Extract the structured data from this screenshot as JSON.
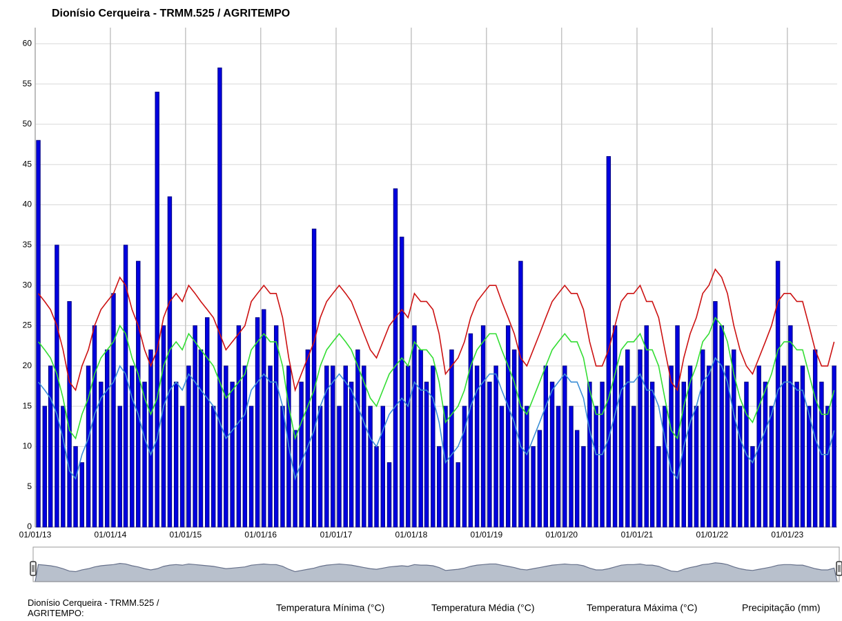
{
  "chart_data": {
    "type": "line",
    "title": "Dionísio Cerqueira - TRMM.525 / AGRITEMPO",
    "legend_title": "Dionísio Cerqueira - TRMM.525 / AGRITEMPO:",
    "x": [
      "2013-01-01",
      "2013-02-01",
      "2013-03-01",
      "2013-04-01",
      "2013-05-01",
      "2013-06-01",
      "2013-07-01",
      "2013-08-01",
      "2013-09-01",
      "2013-10-01",
      "2013-11-01",
      "2013-12-01",
      "2014-01-01",
      "2014-02-01",
      "2014-03-01",
      "2014-04-01",
      "2014-05-01",
      "2014-06-01",
      "2014-07-01",
      "2014-08-01",
      "2014-09-01",
      "2014-10-01",
      "2014-11-01",
      "2014-12-01",
      "2015-01-01",
      "2015-02-01",
      "2015-03-01",
      "2015-04-01",
      "2015-05-01",
      "2015-06-01",
      "2015-07-01",
      "2015-08-01",
      "2015-09-01",
      "2015-10-01",
      "2015-11-01",
      "2015-12-01",
      "2016-01-01",
      "2016-02-01",
      "2016-03-01",
      "2016-04-01",
      "2016-05-01",
      "2016-06-01",
      "2016-07-01",
      "2016-08-01",
      "2016-09-01",
      "2016-10-01",
      "2016-11-01",
      "2016-12-01",
      "2017-01-01",
      "2017-02-01",
      "2017-03-01",
      "2017-04-01",
      "2017-05-01",
      "2017-06-01",
      "2017-07-01",
      "2017-08-01",
      "2017-09-01",
      "2017-10-01",
      "2017-11-01",
      "2017-12-01",
      "2018-01-01",
      "2018-02-01",
      "2018-03-01",
      "2018-04-01",
      "2018-05-01",
      "2018-06-01",
      "2018-07-01",
      "2018-08-01",
      "2018-09-01",
      "2018-10-01",
      "2018-11-01",
      "2018-12-01",
      "2019-01-01",
      "2019-02-01",
      "2019-03-01",
      "2019-04-01",
      "2019-05-01",
      "2019-06-01",
      "2019-07-01",
      "2019-08-01",
      "2019-09-01",
      "2019-10-01",
      "2019-11-01",
      "2019-12-01",
      "2020-01-01",
      "2020-02-01",
      "2020-03-01",
      "2020-04-01",
      "2020-05-01",
      "2020-06-01",
      "2020-07-01",
      "2020-08-01",
      "2020-09-01",
      "2020-10-01",
      "2020-11-01",
      "2020-12-01",
      "2021-01-01",
      "2021-02-01",
      "2021-03-01",
      "2021-04-01",
      "2021-05-01",
      "2021-06-01",
      "2021-07-01",
      "2021-08-01",
      "2021-09-01",
      "2021-10-01",
      "2021-11-01",
      "2021-12-01",
      "2022-01-01",
      "2022-02-01",
      "2022-03-01",
      "2022-04-01",
      "2022-05-01",
      "2022-06-01",
      "2022-07-01",
      "2022-08-01",
      "2022-09-01",
      "2022-10-01",
      "2022-11-01",
      "2022-12-01",
      "2023-01-01",
      "2023-02-01",
      "2023-03-01",
      "2023-04-01",
      "2023-05-01",
      "2023-06-01",
      "2023-07-01",
      "2023-08-01"
    ],
    "series": [
      {
        "name": "Precipitação (mm)",
        "color": "#0000e0",
        "kind": "bar",
        "values": [
          48,
          15,
          20,
          35,
          15,
          28,
          10,
          8,
          20,
          25,
          18,
          22,
          29,
          15,
          35,
          20,
          33,
          18,
          22,
          54,
          25,
          41,
          18,
          15,
          20,
          25,
          22,
          26,
          15,
          57,
          20,
          18,
          25,
          20,
          15,
          26,
          27,
          20,
          25,
          15,
          20,
          12,
          18,
          22,
          37,
          15,
          20,
          20,
          15,
          20,
          18,
          22,
          20,
          15,
          10,
          15,
          8,
          42,
          36,
          20,
          25,
          22,
          18,
          20,
          10,
          15,
          22,
          8,
          15,
          24,
          20,
          25,
          18,
          20,
          15,
          25,
          22,
          33,
          15,
          10,
          12,
          20,
          18,
          15,
          20,
          15,
          12,
          10,
          18,
          15,
          18,
          46,
          25,
          20,
          22,
          15,
          22,
          25,
          18,
          10,
          15,
          20,
          25,
          18,
          20,
          15,
          22,
          20,
          28,
          25,
          20,
          22,
          15,
          18,
          10,
          20,
          18,
          15,
          33,
          20,
          25,
          18,
          20,
          15,
          22,
          18,
          15,
          20
        ]
      },
      {
        "name": "Temperatura Mínima (°C)",
        "color": "#3d8fd6",
        "kind": "line",
        "values": [
          18,
          17,
          16,
          14,
          11,
          7,
          6,
          9,
          11,
          14,
          16,
          17,
          18,
          20,
          19,
          16,
          14,
          11,
          9,
          11,
          15,
          17,
          18,
          17,
          19,
          18,
          17,
          16,
          15,
          13,
          11,
          12,
          13,
          14,
          17,
          18,
          19,
          18,
          18,
          15,
          10,
          6,
          8,
          10,
          12,
          15,
          17,
          18,
          19,
          18,
          17,
          15,
          13,
          11,
          10,
          12,
          14,
          15,
          16,
          15,
          18,
          17,
          17,
          16,
          13,
          8,
          9,
          10,
          12,
          15,
          17,
          18,
          19,
          19,
          17,
          15,
          13,
          10,
          9,
          11,
          13,
          15,
          17,
          18,
          19,
          18,
          18,
          16,
          12,
          9,
          9,
          11,
          14,
          17,
          18,
          18,
          19,
          17,
          17,
          15,
          11,
          7,
          6,
          10,
          13,
          15,
          18,
          19,
          21,
          20,
          18,
          14,
          11,
          9,
          8,
          10,
          12,
          14,
          17,
          18,
          18,
          17,
          17,
          14,
          11,
          9,
          9,
          12
        ]
      },
      {
        "name": "Temperatura Média (°C)",
        "color": "#33dd33",
        "kind": "line",
        "values": [
          23,
          22,
          21,
          19,
          16,
          12,
          11,
          14,
          16,
          19,
          21,
          22,
          23,
          25,
          24,
          21,
          19,
          16,
          14,
          16,
          20,
          22,
          23,
          22,
          24,
          23,
          22,
          21,
          20,
          18,
          16,
          17,
          18,
          19,
          22,
          23,
          24,
          23,
          23,
          20,
          15,
          11,
          13,
          15,
          17,
          20,
          22,
          23,
          24,
          23,
          22,
          20,
          18,
          16,
          15,
          17,
          19,
          20,
          21,
          20,
          23,
          22,
          22,
          21,
          18,
          13,
          14,
          15,
          17,
          20,
          22,
          23,
          24,
          24,
          22,
          20,
          18,
          15,
          14,
          16,
          18,
          20,
          22,
          23,
          24,
          23,
          23,
          21,
          17,
          14,
          14,
          16,
          19,
          22,
          23,
          23,
          24,
          22,
          22,
          20,
          16,
          12,
          11,
          15,
          18,
          20,
          23,
          24,
          26,
          25,
          23,
          19,
          16,
          14,
          13,
          15,
          17,
          19,
          22,
          23,
          23,
          22,
          22,
          19,
          16,
          14,
          14,
          17
        ]
      },
      {
        "name": "Temperatura Máxima (°C)",
        "color": "#cc1111",
        "kind": "line",
        "values": [
          29,
          28,
          27,
          25,
          22,
          18,
          17,
          20,
          22,
          25,
          27,
          28,
          29,
          31,
          30,
          27,
          25,
          22,
          20,
          22,
          26,
          28,
          29,
          28,
          30,
          29,
          28,
          27,
          26,
          24,
          22,
          23,
          24,
          25,
          28,
          29,
          30,
          29,
          29,
          26,
          21,
          17,
          19,
          21,
          23,
          26,
          28,
          29,
          30,
          29,
          28,
          26,
          24,
          22,
          21,
          23,
          25,
          26,
          27,
          26,
          29,
          28,
          28,
          27,
          24,
          19,
          20,
          21,
          23,
          26,
          28,
          29,
          30,
          30,
          28,
          26,
          24,
          21,
          20,
          22,
          24,
          26,
          28,
          29,
          30,
          29,
          29,
          27,
          23,
          20,
          20,
          22,
          25,
          28,
          29,
          29,
          30,
          28,
          28,
          26,
          22,
          18,
          17,
          21,
          24,
          26,
          29,
          30,
          32,
          31,
          29,
          25,
          22,
          20,
          19,
          21,
          23,
          25,
          28,
          29,
          29,
          28,
          28,
          25,
          22,
          20,
          20,
          23
        ]
      }
    ],
    "xlim": [
      "2013-01-01",
      "2023-08-31"
    ],
    "xticks": [
      {
        "value": "2013-01-01",
        "label": "01/01/13"
      },
      {
        "value": "2014-01-01",
        "label": "01/01/14"
      },
      {
        "value": "2015-01-01",
        "label": "01/01/15"
      },
      {
        "value": "2016-01-01",
        "label": "01/01/16"
      },
      {
        "value": "2017-01-01",
        "label": "01/01/17"
      },
      {
        "value": "2018-01-01",
        "label": "01/01/18"
      },
      {
        "value": "2019-01-01",
        "label": "01/01/19"
      },
      {
        "value": "2020-01-01",
        "label": "01/01/20"
      },
      {
        "value": "2021-01-01",
        "label": "01/01/21"
      },
      {
        "value": "2022-01-01",
        "label": "01/01/22"
      },
      {
        "value": "2023-01-01",
        "label": "01/01/23"
      }
    ],
    "ylim": [
      0,
      62
    ],
    "yticks": [
      0,
      5,
      10,
      15,
      20,
      25,
      30,
      35,
      40,
      45,
      50,
      55,
      60
    ],
    "grid": true
  }
}
